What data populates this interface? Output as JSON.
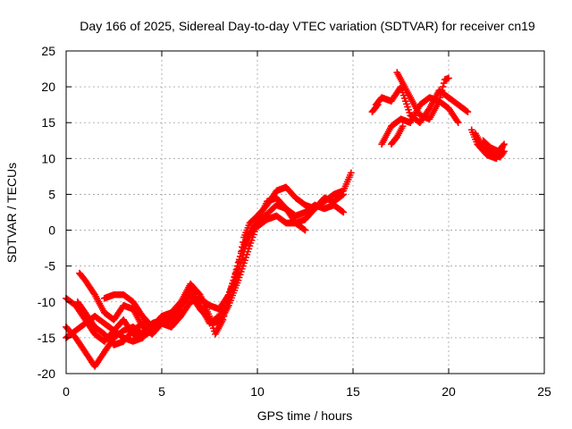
{
  "chart_data": {
    "type": "scatter",
    "title": "Day 166 of 2025, Sidereal Day-to-day VTEC variation (SDTVAR) for receiver cn19",
    "xlabel": "GPS time / hours",
    "ylabel": "SDTVAR / TECUs",
    "xlim": [
      0,
      25
    ],
    "ylim": [
      -20,
      25
    ],
    "xticks": [
      "0",
      "5",
      "10",
      "15",
      "20",
      "25"
    ],
    "yticks": [
      "-20",
      "-15",
      "-10",
      "-5",
      "0",
      "5",
      "10",
      "15",
      "20",
      "25"
    ],
    "grid": true,
    "marker": "plus",
    "color": "#ff0000",
    "series": [
      {
        "name": "",
        "tracks": [
          [
            [
              0.0,
              -9.5
            ],
            [
              0.5,
              -10.5
            ],
            [
              1.0,
              -12.5
            ],
            [
              1.5,
              -14.5
            ],
            [
              2.0,
              -15.5
            ],
            [
              2.5,
              -14.0
            ],
            [
              3.0,
              -12.5
            ],
            [
              3.5,
              -14.5
            ],
            [
              4.0,
              -14.8
            ],
            [
              4.5,
              -14.0
            ],
            [
              5.0,
              -12.0
            ],
            [
              5.5,
              -12.5
            ],
            [
              6.0,
              -11.0
            ],
            [
              6.5,
              -8.0
            ],
            [
              7.0,
              -10.5
            ],
            [
              7.5,
              -13.0
            ],
            [
              8.0,
              -12.0
            ],
            [
              8.5,
              -9.0
            ],
            [
              9.0,
              -5.0
            ],
            [
              9.3,
              -1.0
            ],
            [
              9.6,
              1.0
            ],
            [
              10.0,
              2.0
            ],
            [
              10.5,
              3.5
            ],
            [
              11.0,
              5.5
            ],
            [
              11.5,
              6.0
            ],
            [
              12.0,
              4.5
            ],
            [
              12.5,
              3.5
            ],
            [
              13.0,
              3.0
            ],
            [
              13.5,
              4.0
            ],
            [
              14.0,
              5.0
            ],
            [
              14.5,
              5.5
            ],
            [
              14.9,
              8.0
            ]
          ],
          [
            [
              0.0,
              -13.5
            ],
            [
              0.5,
              -15.0
            ],
            [
              1.0,
              -17.0
            ],
            [
              1.5,
              -19.0
            ],
            [
              2.0,
              -17.0
            ],
            [
              2.5,
              -15.0
            ],
            [
              3.0,
              -14.0
            ],
            [
              3.5,
              -13.5
            ],
            [
              4.0,
              -14.5
            ],
            [
              4.5,
              -13.0
            ],
            [
              5.0,
              -12.5
            ],
            [
              5.5,
              -13.5
            ],
            [
              6.0,
              -12.0
            ],
            [
              6.5,
              -10.0
            ],
            [
              7.0,
              -9.5
            ],
            [
              7.5,
              -10.5
            ],
            [
              8.0,
              -11.0
            ],
            [
              8.5,
              -9.0
            ],
            [
              9.0,
              -6.0
            ],
            [
              9.4,
              -2.0
            ],
            [
              9.8,
              0.5
            ],
            [
              10.2,
              1.5
            ],
            [
              10.6,
              2.5
            ],
            [
              11.0,
              3.5
            ],
            [
              11.5,
              3.0
            ],
            [
              12.0,
              2.0
            ],
            [
              12.5,
              2.5
            ],
            [
              13.0,
              3.5
            ],
            [
              13.5,
              3.0
            ],
            [
              14.0,
              3.5
            ],
            [
              14.5,
              2.5
            ]
          ],
          [
            [
              0.0,
              -15.0
            ],
            [
              0.5,
              -14.0
            ],
            [
              1.0,
              -13.0
            ],
            [
              1.5,
              -12.0
            ],
            [
              2.0,
              -13.0
            ],
            [
              2.5,
              -14.0
            ],
            [
              3.0,
              -15.0
            ],
            [
              3.5,
              -15.5
            ],
            [
              4.0,
              -15.0
            ],
            [
              4.5,
              -13.5
            ],
            [
              5.0,
              -12.0
            ],
            [
              5.5,
              -11.5
            ],
            [
              6.0,
              -10.0
            ],
            [
              6.5,
              -7.5
            ],
            [
              7.0,
              -9.0
            ],
            [
              7.5,
              -12.0
            ],
            [
              7.8,
              -14.5
            ],
            [
              8.2,
              -12.5
            ],
            [
              8.6,
              -8.5
            ],
            [
              9.0,
              -4.5
            ],
            [
              9.3,
              -2.0
            ],
            [
              9.7,
              0.0
            ],
            [
              10.0,
              0.5
            ],
            [
              10.5,
              1.5
            ],
            [
              11.0,
              2.0
            ],
            [
              11.5,
              1.0
            ],
            [
              12.0,
              1.0
            ],
            [
              12.5,
              0.0
            ]
          ],
          [
            [
              0.7,
              -6.0
            ],
            [
              1.0,
              -7.0
            ],
            [
              1.5,
              -9.0
            ],
            [
              2.0,
              -11.5
            ],
            [
              2.5,
              -12.5
            ],
            [
              3.0,
              -10.5
            ],
            [
              3.5,
              -11.0
            ],
            [
              4.0,
              -13.5
            ],
            [
              4.5,
              -14.5
            ],
            [
              5.0,
              -13.0
            ],
            [
              5.5,
              -12.0
            ],
            [
              6.0,
              -10.5
            ],
            [
              6.5,
              -9.0
            ],
            [
              7.0,
              -11.0
            ],
            [
              7.5,
              -12.5
            ],
            [
              8.0,
              -13.0
            ],
            [
              8.5,
              -10.5
            ],
            [
              9.0,
              -7.0
            ],
            [
              9.5,
              -3.0
            ],
            [
              10.0,
              1.0
            ],
            [
              10.5,
              4.0
            ],
            [
              11.0,
              4.5
            ],
            [
              11.5,
              3.0
            ],
            [
              12.0,
              1.0
            ],
            [
              12.5,
              1.5
            ],
            [
              13.0,
              3.0
            ],
            [
              13.5,
              4.5
            ],
            [
              14.0,
              4.0
            ],
            [
              14.5,
              5.0
            ]
          ],
          [
            [
              0.6,
              -10.0
            ],
            [
              1.0,
              -11.5
            ],
            [
              1.5,
              -13.5
            ],
            [
              2.0,
              -14.5
            ],
            [
              2.5,
              -16.0
            ],
            [
              3.0,
              -15.5
            ],
            [
              3.5,
              -14.0
            ],
            [
              4.0,
              -13.0
            ],
            [
              4.5,
              -13.5
            ],
            [
              5.0,
              -13.0
            ],
            [
              5.5,
              -13.5
            ]
          ],
          [
            [
              2.0,
              -9.5
            ],
            [
              2.5,
              -9.0
            ],
            [
              3.0,
              -9.0
            ],
            [
              3.5,
              -10.0
            ],
            [
              4.0,
              -12.0
            ],
            [
              4.5,
              -13.5
            ]
          ],
          [
            [
              16.2,
              17.5
            ],
            [
              16.5,
              18.5
            ],
            [
              17.0,
              18.0
            ],
            [
              17.5,
              20.0
            ],
            [
              18.0,
              16.0
            ],
            [
              18.5,
              15.0
            ],
            [
              19.0,
              17.0
            ],
            [
              19.5,
              19.5
            ],
            [
              20.0,
              18.5
            ],
            [
              20.5,
              17.5
            ],
            [
              21.0,
              16.5
            ]
          ],
          [
            [
              16.5,
              12.0
            ],
            [
              17.0,
              14.5
            ],
            [
              17.5,
              15.5
            ],
            [
              18.0,
              15.0
            ],
            [
              18.5,
              17.5
            ],
            [
              19.0,
              18.5
            ],
            [
              19.5,
              18.0
            ],
            [
              20.0,
              17.0
            ],
            [
              20.5,
              15.0
            ]
          ],
          [
            [
              17.3,
              22.0
            ],
            [
              17.6,
              20.5
            ],
            [
              18.0,
              18.5
            ],
            [
              18.5,
              16.0
            ],
            [
              19.0,
              15.5
            ],
            [
              19.5,
              18.0
            ],
            [
              19.8,
              21.0
            ],
            [
              20.0,
              21.2
            ]
          ],
          [
            [
              17.0,
              12.0
            ],
            [
              17.3,
              13.0
            ],
            [
              17.6,
              14.5
            ]
          ],
          [
            [
              16.0,
              16.5
            ],
            [
              16.3,
              17.5
            ]
          ],
          [
            [
              21.2,
              14.0
            ],
            [
              21.5,
              12.0
            ],
            [
              22.0,
              10.5
            ],
            [
              22.5,
              10.0
            ],
            [
              22.8,
              11.5
            ]
          ],
          [
            [
              21.8,
              12.5
            ],
            [
              22.2,
              11.5
            ],
            [
              22.6,
              11.0
            ],
            [
              22.9,
              12.0
            ]
          ],
          [
            [
              21.4,
              13.5
            ],
            [
              21.8,
              11.5
            ],
            [
              22.3,
              10.5
            ],
            [
              22.7,
              10.2
            ],
            [
              22.9,
              11.0
            ]
          ]
        ]
      }
    ]
  }
}
